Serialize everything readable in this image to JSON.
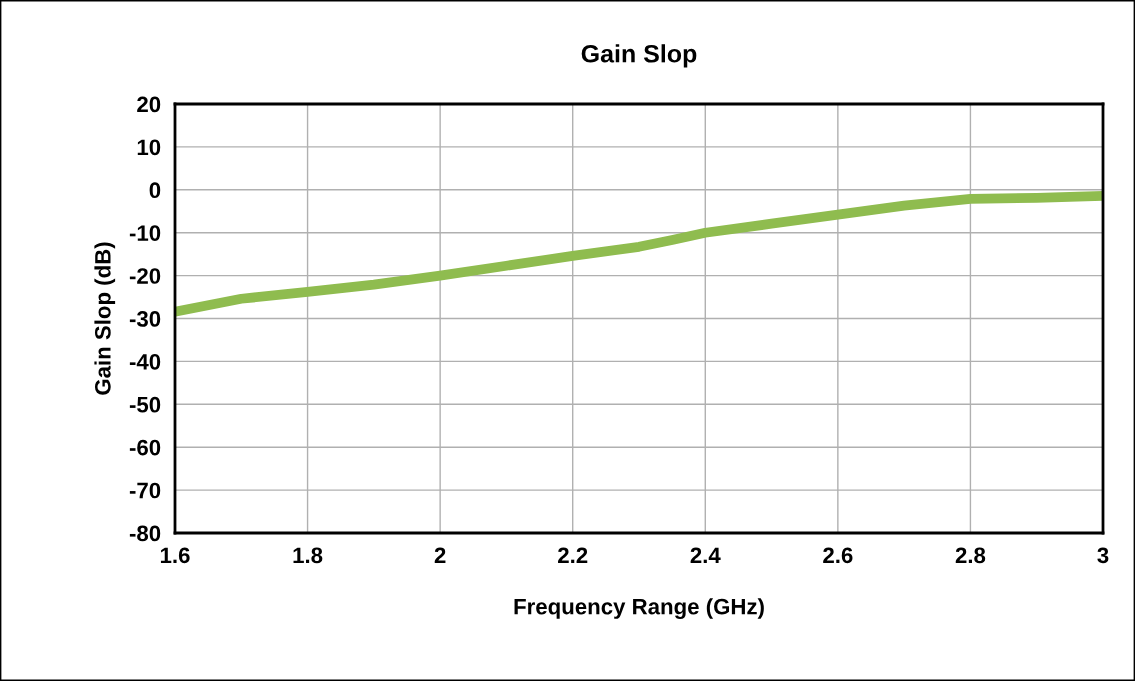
{
  "chart_data": {
    "type": "line",
    "title": "Gain Slop",
    "xlabel": "Frequency Range (GHz)",
    "ylabel": "Gain Slop (dB)",
    "x": [
      1.6,
      1.7,
      1.8,
      1.9,
      2.0,
      2.1,
      2.2,
      2.3,
      2.35,
      2.4,
      2.5,
      2.6,
      2.7,
      2.8,
      2.9,
      3.0
    ],
    "series": [
      {
        "color": "#8fbc4f",
        "values": [
          -28.4,
          -25.4,
          -23.8,
          -22.1,
          -20.0,
          -17.7,
          -15.4,
          -13.3,
          -11.7,
          -10.0,
          -7.9,
          -5.8,
          -3.7,
          -2.1,
          -1.9,
          -1.4
        ]
      }
    ],
    "xlim": [
      1.6,
      3
    ],
    "xticks": [
      1.6,
      1.8,
      2,
      2.2,
      2.4,
      2.6,
      2.8,
      3
    ],
    "ylim": [
      -80,
      20
    ],
    "yticks": [
      -80,
      -70,
      -60,
      -50,
      -40,
      -30,
      -20,
      -10,
      0,
      10,
      20
    ],
    "grid": true,
    "legend": false,
    "marker": "none",
    "line_style": "solid"
  }
}
